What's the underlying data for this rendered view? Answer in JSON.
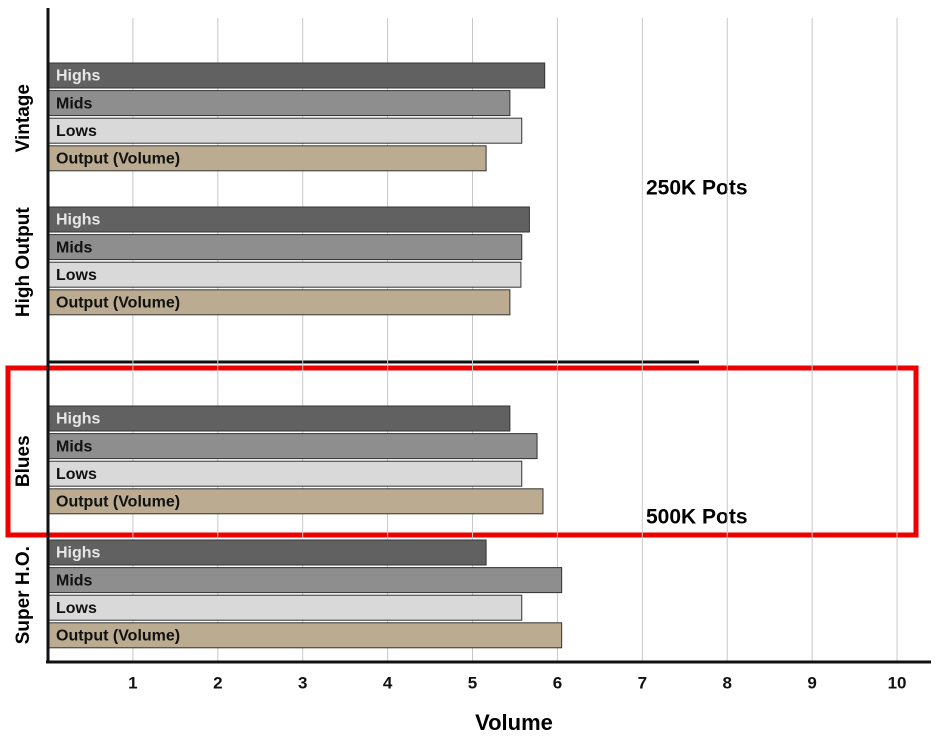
{
  "chart_data": {
    "type": "bar",
    "orientation": "horizontal",
    "categories": [
      "Vintage",
      "High Output",
      "Blues",
      "Super H.O."
    ],
    "series": [
      {
        "name": "Highs",
        "color": "#616161",
        "values": [
          5.85,
          5.67,
          5.44,
          5.16
        ]
      },
      {
        "name": "Mids",
        "color": "#8e8e8e",
        "values": [
          5.44,
          5.58,
          5.76,
          6.05
        ]
      },
      {
        "name": "Lows",
        "color": "#d9d9d9",
        "values": [
          5.58,
          5.57,
          5.58,
          5.58
        ]
      },
      {
        "name": "Output (Volume)",
        "color": "#baab91",
        "values": [
          5.16,
          5.44,
          5.83,
          6.05
        ]
      }
    ],
    "xlabel": "Volume",
    "xlim": [
      0,
      10.4
    ],
    "xticks": [
      1,
      2,
      3,
      4,
      5,
      6,
      7,
      8,
      9,
      10
    ],
    "grid": true,
    "annotations": [
      "250K Pots",
      "500K Pots"
    ]
  }
}
